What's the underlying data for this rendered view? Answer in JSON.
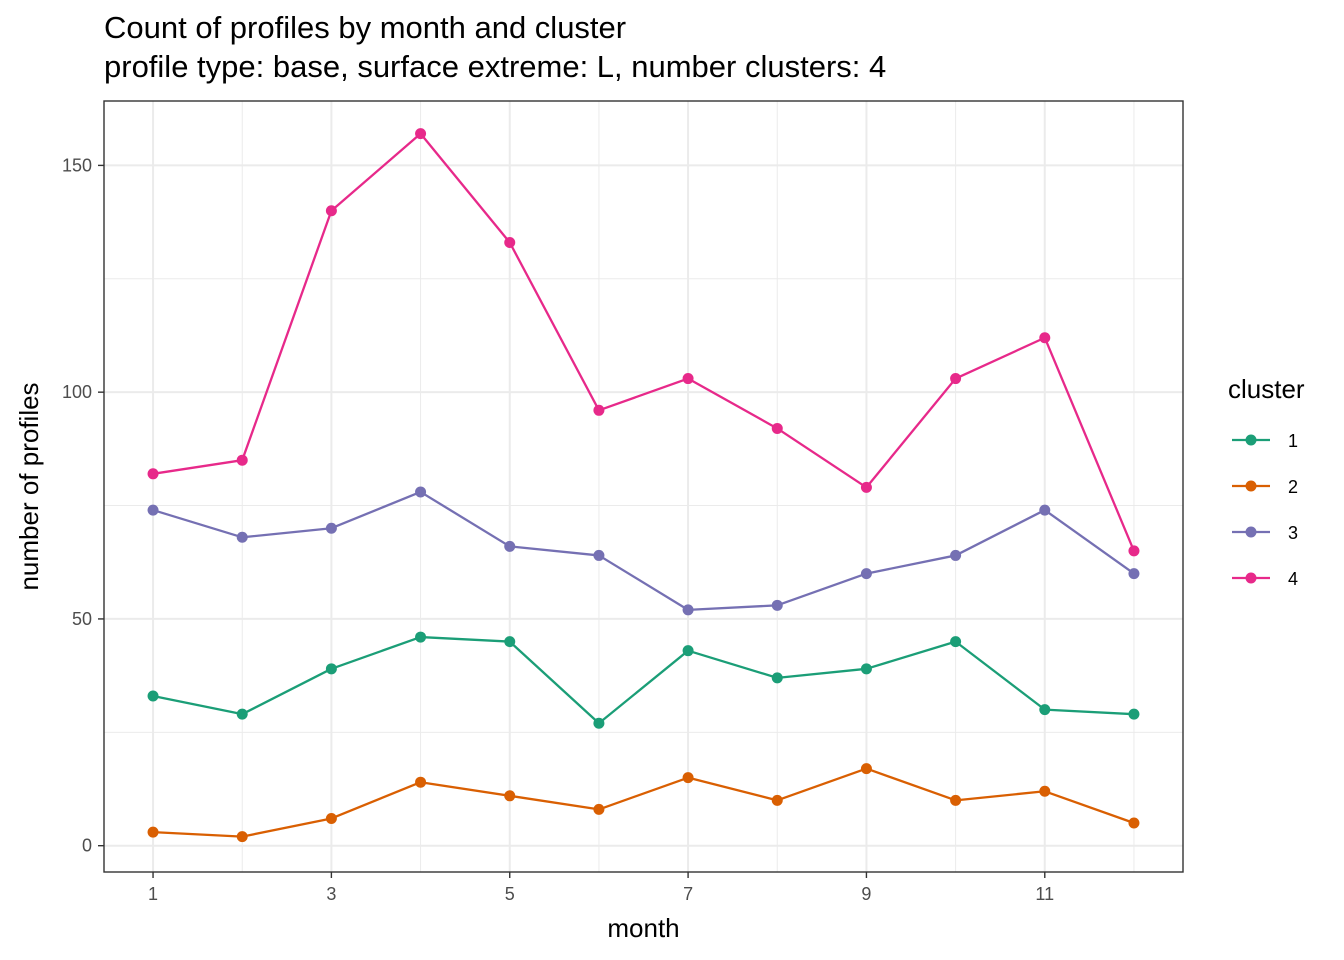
{
  "chart_data": {
    "type": "line",
    "title": "Count of profiles by month and cluster",
    "subtitle": "profile type: base, surface extreme: L, number clusters: 4",
    "xlabel": "month",
    "ylabel": "number of profiles",
    "x": [
      1,
      2,
      3,
      4,
      5,
      6,
      7,
      8,
      9,
      10,
      11,
      12
    ],
    "xticks": [
      1,
      3,
      5,
      7,
      9,
      11
    ],
    "yticks": [
      0,
      50,
      100,
      150
    ],
    "xlim": [
      0.45,
      12.55
    ],
    "ylim": [
      -5.8,
      164.2
    ],
    "grid": true,
    "legend": {
      "title": "cluster",
      "position": "right"
    },
    "series": [
      {
        "name": "1",
        "color": "#1b9e77",
        "values": [
          33,
          29,
          39,
          46,
          45,
          27,
          43,
          37,
          39,
          45,
          30,
          29
        ]
      },
      {
        "name": "2",
        "color": "#d95f02",
        "values": [
          3,
          2,
          6,
          14,
          11,
          8,
          15,
          10,
          17,
          10,
          12,
          5
        ]
      },
      {
        "name": "3",
        "color": "#7570b3",
        "values": [
          74,
          68,
          70,
          78,
          66,
          64,
          52,
          53,
          60,
          64,
          74,
          60
        ]
      },
      {
        "name": "4",
        "color": "#e7298a",
        "values": [
          82,
          85,
          140,
          157,
          133,
          96,
          103,
          92,
          79,
          103,
          112,
          65
        ]
      }
    ]
  }
}
